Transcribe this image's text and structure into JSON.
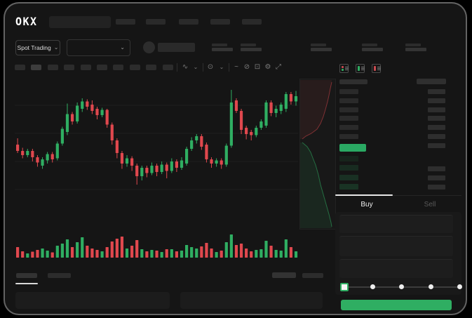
{
  "header": {
    "logo_text": "OKX",
    "nav_item_count": 5,
    "stat_pair_count": 5
  },
  "market_bar": {
    "market_selector_label": "Spot Trading"
  },
  "chart_toolbar": {
    "interval_count": 10,
    "selected_interval_index": 1
  },
  "icons": {
    "chevron_down": "⌄",
    "candle_style": "∿",
    "indicators": "⊙",
    "line_tool": "~",
    "draw_tool": "⊘",
    "snapshot": "⊡",
    "settings": "⚙",
    "fullscreen": "⤢"
  },
  "orderbook": {
    "view_modes": [
      "combined",
      "bids",
      "asks"
    ],
    "ask_row_count": 6,
    "bid_row_count": 4,
    "bid_right_bar_count": 3,
    "last_price_highlight_color": "#2aa963"
  },
  "trade_form": {
    "buy_tab_label": "Buy",
    "sell_tab_label": "Sell",
    "field_count": 3,
    "slider_stop_count": 5,
    "slider_active_index": 0,
    "submit_color": "#2fae62"
  },
  "colors": {
    "up_green": "#2fae62",
    "down_red": "#e0484e",
    "background": "#151515",
    "tab_indicator": "#e6e6e6"
  },
  "chart_data": {
    "type": "candlestick",
    "title": "",
    "xlabel": "",
    "ylabel": "",
    "ylim": [
      0,
      100
    ],
    "grid": true,
    "legend": "none",
    "colors": {
      "up": "#2fae62",
      "down": "#e0484e"
    },
    "candles_ohlc": [
      [
        46,
        52,
        38,
        40
      ],
      [
        40,
        43,
        33,
        36
      ],
      [
        36,
        42,
        34,
        40
      ],
      [
        40,
        42,
        30,
        34
      ],
      [
        34,
        36,
        25,
        29
      ],
      [
        26,
        34,
        23,
        32
      ],
      [
        31,
        39,
        28,
        37
      ],
      [
        37,
        39,
        29,
        32
      ],
      [
        33,
        49,
        31,
        47
      ],
      [
        47,
        63,
        45,
        61
      ],
      [
        58,
        85,
        55,
        75
      ],
      [
        75,
        77,
        65,
        68
      ],
      [
        68,
        86,
        66,
        83
      ],
      [
        80,
        90,
        77,
        87
      ],
      [
        87,
        89,
        79,
        82
      ],
      [
        84,
        88,
        75,
        78
      ],
      [
        80,
        82,
        70,
        74
      ],
      [
        74,
        81,
        72,
        79
      ],
      [
        79,
        80,
        62,
        65
      ],
      [
        65,
        67,
        46,
        50
      ],
      [
        50,
        52,
        33,
        38
      ],
      [
        38,
        40,
        23,
        28
      ],
      [
        28,
        36,
        25,
        33
      ],
      [
        33,
        35,
        21,
        26
      ],
      [
        26,
        28,
        8,
        16
      ],
      [
        16,
        26,
        12,
        24
      ],
      [
        24,
        26,
        15,
        19
      ],
      [
        19,
        29,
        17,
        26
      ],
      [
        26,
        28,
        16,
        20
      ],
      [
        20,
        30,
        18,
        27
      ],
      [
        27,
        29,
        14,
        21
      ],
      [
        21,
        33,
        19,
        30
      ],
      [
        30,
        32,
        20,
        24
      ],
      [
        24,
        34,
        22,
        31
      ],
      [
        28,
        44,
        26,
        42
      ],
      [
        42,
        53,
        40,
        50
      ],
      [
        50,
        56,
        47,
        54
      ],
      [
        54,
        56,
        41,
        44
      ],
      [
        46,
        48,
        29,
        32
      ],
      [
        32,
        34,
        24,
        28
      ],
      [
        28,
        33,
        25,
        31
      ],
      [
        31,
        33,
        23,
        27
      ],
      [
        27,
        47,
        25,
        45
      ],
      [
        45,
        98,
        43,
        86
      ],
      [
        88,
        90,
        76,
        78
      ],
      [
        78,
        80,
        56,
        60
      ],
      [
        62,
        64,
        51,
        56
      ],
      [
        58,
        60,
        50,
        55
      ],
      [
        55,
        64,
        53,
        62
      ],
      [
        62,
        70,
        60,
        68
      ],
      [
        64,
        88,
        62,
        86
      ],
      [
        86,
        88,
        73,
        76
      ],
      [
        76,
        83,
        72,
        80
      ],
      [
        78,
        86,
        75,
        84
      ],
      [
        80,
        96,
        77,
        94
      ],
      [
        94,
        96,
        84,
        87
      ],
      [
        87,
        97,
        83,
        92
      ]
    ],
    "volumes": [
      30,
      18,
      12,
      17,
      22,
      26,
      20,
      15,
      34,
      40,
      52,
      30,
      44,
      58,
      34,
      26,
      22,
      18,
      30,
      46,
      54,
      60,
      26,
      34,
      50,
      24,
      18,
      22,
      20,
      16,
      24,
      24,
      18,
      20,
      36,
      30,
      26,
      32,
      42,
      26,
      16,
      20,
      44,
      66,
      36,
      40,
      26,
      18,
      22,
      24,
      48,
      34,
      22,
      20,
      52,
      30,
      18
    ],
    "depth": {
      "asks_curve": [
        [
          45,
          4
        ],
        [
          43,
          13
        ],
        [
          41,
          23
        ],
        [
          39,
          32
        ],
        [
          36,
          43
        ],
        [
          33,
          53
        ],
        [
          29,
          63
        ],
        [
          24,
          71
        ],
        [
          16,
          77
        ],
        [
          8,
          81
        ],
        [
          3,
          85
        ]
      ],
      "bids_curve": [
        [
          3,
          90
        ],
        [
          10,
          96
        ],
        [
          15,
          104
        ],
        [
          18,
          112
        ],
        [
          22,
          122
        ],
        [
          26,
          136
        ],
        [
          29,
          150
        ],
        [
          33,
          164
        ],
        [
          37,
          178
        ],
        [
          41,
          192
        ],
        [
          44,
          204
        ],
        [
          45,
          210
        ]
      ]
    }
  }
}
